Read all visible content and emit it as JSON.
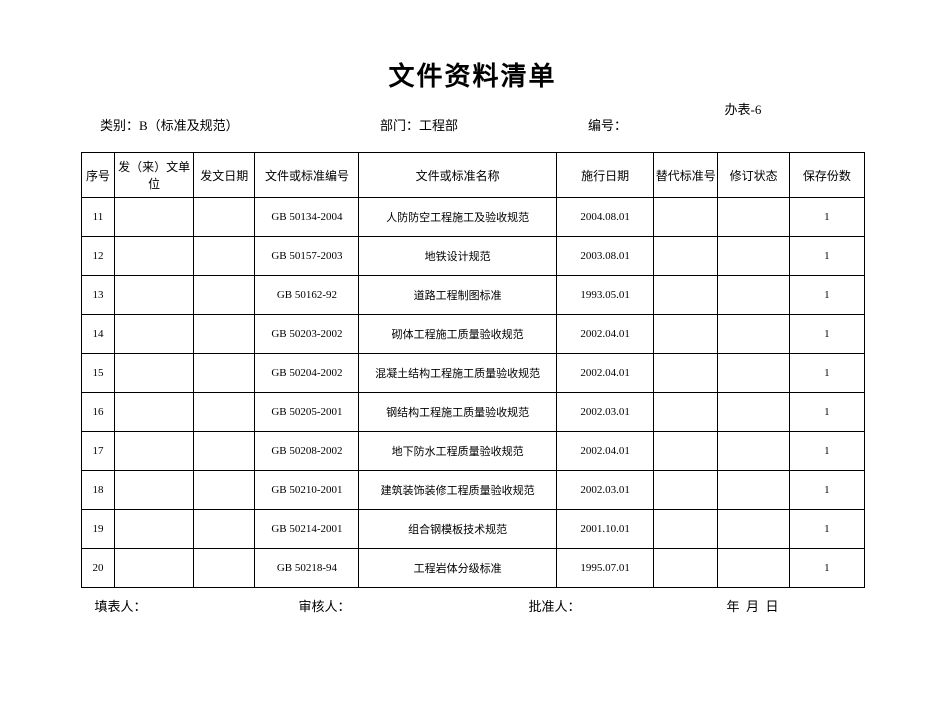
{
  "title": "文件资料清单",
  "topbar": {
    "category_label": "类别：",
    "category_value": "B（标准及规范）",
    "dept_label": "部门：",
    "dept_value": "工程部",
    "code_label": "编号：",
    "form_no": "办表-6"
  },
  "cols": [
    "序号",
    "发（来）文单位",
    "发文日期",
    "文件或标准编号",
    "文件或标准名称",
    "施行日期",
    "替代标准号",
    "修订状态",
    "保存份数"
  ],
  "rows": [
    {
      "no": "11",
      "unit": "",
      "date": "",
      "code": "GB 50134-2004",
      "name": "人防防空工程施工及验收规范",
      "eff": "2004.08.01",
      "rep": "",
      "rev": "",
      "qty": "1"
    },
    {
      "no": "12",
      "unit": "",
      "date": "",
      "code": "GB 50157-2003",
      "name": "地铁设计规范",
      "eff": "2003.08.01",
      "rep": "",
      "rev": "",
      "qty": "1"
    },
    {
      "no": "13",
      "unit": "",
      "date": "",
      "code": "GB 50162-92",
      "name": "道路工程制图标准",
      "eff": "1993.05.01",
      "rep": "",
      "rev": "",
      "qty": "1"
    },
    {
      "no": "14",
      "unit": "",
      "date": "",
      "code": "GB 50203-2002",
      "name": "砌体工程施工质量验收规范",
      "eff": "2002.04.01",
      "rep": "",
      "rev": "",
      "qty": "1"
    },
    {
      "no": "15",
      "unit": "",
      "date": "",
      "code": "GB 50204-2002",
      "name": "混凝土结构工程施工质量验收规范",
      "eff": "2002.04.01",
      "rep": "",
      "rev": "",
      "qty": "1"
    },
    {
      "no": "16",
      "unit": "",
      "date": "",
      "code": "GB 50205-2001",
      "name": "钢结构工程施工质量验收规范",
      "eff": "2002.03.01",
      "rep": "",
      "rev": "",
      "qty": "1"
    },
    {
      "no": "17",
      "unit": "",
      "date": "",
      "code": "GB 50208-2002",
      "name": "地下防水工程质量验收规范",
      "eff": "2002.04.01",
      "rep": "",
      "rev": "",
      "qty": "1"
    },
    {
      "no": "18",
      "unit": "",
      "date": "",
      "code": "GB 50210-2001",
      "name": "建筑装饰装修工程质量验收规范",
      "eff": "2002.03.01",
      "rep": "",
      "rev": "",
      "qty": "1"
    },
    {
      "no": "19",
      "unit": "",
      "date": "",
      "code": "GB 50214-2001",
      "name": "组合钢模板技术规范",
      "eff": "2001.10.01",
      "rep": "",
      "rev": "",
      "qty": "1"
    },
    {
      "no": "20",
      "unit": "",
      "date": "",
      "code": "GB 50218-94",
      "name": "工程岩体分级标准",
      "eff": "1995.07.01",
      "rep": "",
      "rev": "",
      "qty": "1"
    }
  ],
  "sig": {
    "filler": "填表人：",
    "reviewer": "审核人：",
    "approver": "批准人：",
    "date": "年  月  日"
  }
}
